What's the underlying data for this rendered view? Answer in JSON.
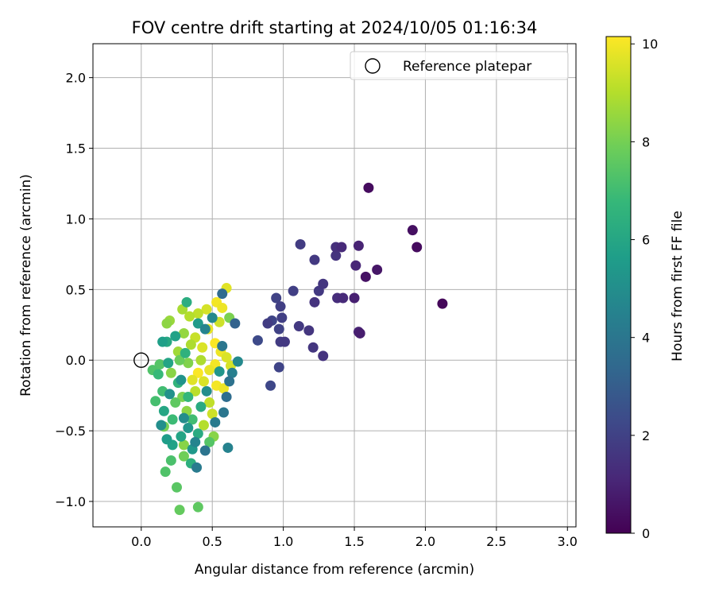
{
  "chart_data": {
    "type": "scatter",
    "title": "FOV centre drift starting at 2024/10/05 01:16:34",
    "xlabel": "Angular distance from reference (arcmin)",
    "ylabel": "Rotation from reference (arcmin)",
    "xlim": [
      -0.34,
      3.06
    ],
    "ylim": [
      -1.18,
      2.24
    ],
    "xticks": [
      "0.0",
      "0.5",
      "1.0",
      "1.5",
      "2.0",
      "2.5",
      "3.0"
    ],
    "xtick_values": [
      0.0,
      0.5,
      1.0,
      1.5,
      2.0,
      2.5,
      3.0
    ],
    "yticks": [
      "−1.0",
      "−0.5",
      "0.0",
      "0.5",
      "1.0",
      "1.5",
      "2.0"
    ],
    "ytick_values": [
      -1.0,
      -0.5,
      0.0,
      0.5,
      1.0,
      1.5,
      2.0
    ],
    "grid": true,
    "legend": {
      "position": "top-right",
      "entries": [
        "Reference platepar"
      ]
    },
    "reference_point": {
      "x": 0.0,
      "y": 0.0,
      "marker": "open-circle"
    },
    "colorbar": {
      "label": "Hours from first FF file",
      "colormap": "viridis",
      "range": [
        0,
        10.15
      ],
      "ticks": [
        "0",
        "2",
        "4",
        "6",
        "8",
        "10"
      ],
      "tick_values": [
        0,
        2,
        4,
        6,
        8,
        10
      ]
    },
    "colors": {
      "viridis": [
        "#440154",
        "#482878",
        "#3e4989",
        "#31688e",
        "#26828e",
        "#1f9e89",
        "#35b779",
        "#6ece58",
        "#b5de2b",
        "#fde725"
      ]
    },
    "series": [
      {
        "points": [
          {
            "x": 1.6,
            "y": 1.22,
            "c": 0.3
          },
          {
            "x": 1.91,
            "y": 0.92,
            "c": 0.4
          },
          {
            "x": 1.94,
            "y": 0.8,
            "c": 0.3
          },
          {
            "x": 2.12,
            "y": 0.4,
            "c": 0.2
          },
          {
            "x": 1.66,
            "y": 0.64,
            "c": 0.6
          },
          {
            "x": 1.58,
            "y": 0.59,
            "c": 0.5
          },
          {
            "x": 1.53,
            "y": 0.81,
            "c": 1.0
          },
          {
            "x": 1.51,
            "y": 0.67,
            "c": 1.1
          },
          {
            "x": 1.5,
            "y": 0.44,
            "c": 0.9
          },
          {
            "x": 1.42,
            "y": 0.44,
            "c": 1.2
          },
          {
            "x": 1.38,
            "y": 0.44,
            "c": 1.3
          },
          {
            "x": 1.54,
            "y": 0.19,
            "c": 0.8
          },
          {
            "x": 1.53,
            "y": 0.2,
            "c": 1.0
          },
          {
            "x": 1.41,
            "y": 0.8,
            "c": 1.2
          },
          {
            "x": 1.37,
            "y": 0.8,
            "c": 1.4
          },
          {
            "x": 1.37,
            "y": 0.74,
            "c": 1.5
          },
          {
            "x": 1.12,
            "y": 0.82,
            "c": 1.8
          },
          {
            "x": 1.22,
            "y": 0.71,
            "c": 1.7
          },
          {
            "x": 1.28,
            "y": 0.54,
            "c": 1.6
          },
          {
            "x": 1.25,
            "y": 0.49,
            "c": 1.7
          },
          {
            "x": 1.22,
            "y": 0.41,
            "c": 1.5
          },
          {
            "x": 1.07,
            "y": 0.49,
            "c": 1.9
          },
          {
            "x": 0.95,
            "y": 0.44,
            "c": 2.0
          },
          {
            "x": 0.98,
            "y": 0.38,
            "c": 1.9
          },
          {
            "x": 0.92,
            "y": 0.28,
            "c": 2.1
          },
          {
            "x": 0.89,
            "y": 0.26,
            "c": 1.8
          },
          {
            "x": 0.99,
            "y": 0.3,
            "c": 1.9
          },
          {
            "x": 1.11,
            "y": 0.24,
            "c": 1.7
          },
          {
            "x": 1.18,
            "y": 0.21,
            "c": 1.6
          },
          {
            "x": 0.97,
            "y": 0.22,
            "c": 2.0
          },
          {
            "x": 0.98,
            "y": 0.13,
            "c": 1.8
          },
          {
            "x": 1.01,
            "y": 0.13,
            "c": 1.7
          },
          {
            "x": 0.82,
            "y": 0.14,
            "c": 2.3
          },
          {
            "x": 1.21,
            "y": 0.09,
            "c": 1.6
          },
          {
            "x": 1.28,
            "y": 0.03,
            "c": 1.5
          },
          {
            "x": 0.97,
            "y": -0.05,
            "c": 2.1
          },
          {
            "x": 0.91,
            "y": -0.18,
            "c": 2.2
          },
          {
            "x": 0.66,
            "y": 0.26,
            "c": 3.2
          },
          {
            "x": 0.57,
            "y": 0.47,
            "c": 3.5
          },
          {
            "x": 0.62,
            "y": -0.15,
            "c": 3.8
          },
          {
            "x": 0.6,
            "y": -0.26,
            "c": 3.6
          },
          {
            "x": 0.58,
            "y": -0.37,
            "c": 4.0
          },
          {
            "x": 0.61,
            "y": -0.62,
            "c": 4.5
          },
          {
            "x": 0.45,
            "y": -0.64,
            "c": 3.9
          },
          {
            "x": 0.39,
            "y": -0.76,
            "c": 4.2
          },
          {
            "x": 0.68,
            "y": -0.01,
            "c": 4.8
          },
          {
            "x": 0.64,
            "y": -0.09,
            "c": 4.4
          },
          {
            "x": 0.57,
            "y": 0.1,
            "c": 4.0
          },
          {
            "x": 0.45,
            "y": 0.22,
            "c": 4.6
          },
          {
            "x": 0.52,
            "y": -0.44,
            "c": 4.2
          },
          {
            "x": 0.38,
            "y": -0.58,
            "c": 4.6
          },
          {
            "x": 0.3,
            "y": -0.41,
            "c": 4.9
          },
          {
            "x": 0.14,
            "y": -0.46,
            "c": 5.0
          },
          {
            "x": 0.2,
            "y": -0.24,
            "c": 5.1
          },
          {
            "x": 0.28,
            "y": -0.14,
            "c": 5.2
          },
          {
            "x": 0.33,
            "y": -0.48,
            "c": 5.3
          },
          {
            "x": 0.36,
            "y": -0.63,
            "c": 5.4
          },
          {
            "x": 0.15,
            "y": 0.13,
            "c": 5.7
          },
          {
            "x": 0.18,
            "y": 0.13,
            "c": 6.1
          },
          {
            "x": 0.32,
            "y": 0.41,
            "c": 6.3
          },
          {
            "x": 0.24,
            "y": 0.17,
            "c": 5.8
          },
          {
            "x": 0.19,
            "y": -0.02,
            "c": 5.9
          },
          {
            "x": 0.16,
            "y": -0.36,
            "c": 6.0
          },
          {
            "x": 0.18,
            "y": -0.56,
            "c": 5.6
          },
          {
            "x": 0.22,
            "y": -0.6,
            "c": 5.8
          },
          {
            "x": 0.28,
            "y": -0.54,
            "c": 5.9
          },
          {
            "x": 0.4,
            "y": -0.52,
            "c": 6.2
          },
          {
            "x": 0.35,
            "y": -0.73,
            "c": 6.4
          },
          {
            "x": 0.42,
            "y": -0.33,
            "c": 6.2
          },
          {
            "x": 0.12,
            "y": -0.1,
            "c": 6.8
          },
          {
            "x": 0.1,
            "y": -0.29,
            "c": 7.1
          },
          {
            "x": 0.08,
            "y": -0.07,
            "c": 7.3
          },
          {
            "x": 0.13,
            "y": -0.03,
            "c": 7.4
          },
          {
            "x": 0.21,
            "y": -0.71,
            "c": 7.2
          },
          {
            "x": 0.25,
            "y": -0.9,
            "c": 7.5
          },
          {
            "x": 0.27,
            "y": -1.06,
            "c": 7.7
          },
          {
            "x": 0.4,
            "y": -1.04,
            "c": 7.6
          },
          {
            "x": 0.17,
            "y": -0.79,
            "c": 7.3
          },
          {
            "x": 0.3,
            "y": -0.68,
            "c": 7.9
          },
          {
            "x": 0.48,
            "y": -0.58,
            "c": 7.4
          },
          {
            "x": 0.51,
            "y": -0.54,
            "c": 8.3
          },
          {
            "x": 0.18,
            "y": 0.26,
            "c": 8.4
          },
          {
            "x": 0.2,
            "y": 0.28,
            "c": 8.6
          },
          {
            "x": 0.29,
            "y": 0.36,
            "c": 8.8
          },
          {
            "x": 0.3,
            "y": 0.19,
            "c": 8.5
          },
          {
            "x": 0.26,
            "y": 0.06,
            "c": 8.7
          },
          {
            "x": 0.35,
            "y": 0.11,
            "c": 8.9
          },
          {
            "x": 0.33,
            "y": -0.02,
            "c": 8.2
          },
          {
            "x": 0.29,
            "y": -0.26,
            "c": 8.1
          },
          {
            "x": 0.32,
            "y": -0.36,
            "c": 8.4
          },
          {
            "x": 0.16,
            "y": -0.47,
            "c": 8.0
          },
          {
            "x": 0.3,
            "y": -0.6,
            "c": 8.3
          },
          {
            "x": 0.34,
            "y": 0.31,
            "c": 9.0
          },
          {
            "x": 0.4,
            "y": 0.33,
            "c": 9.2
          },
          {
            "x": 0.46,
            "y": 0.36,
            "c": 9.5
          },
          {
            "x": 0.38,
            "y": 0.16,
            "c": 9.3
          },
          {
            "x": 0.43,
            "y": 0.09,
            "c": 9.6
          },
          {
            "x": 0.47,
            "y": 0.22,
            "c": 9.8
          },
          {
            "x": 0.53,
            "y": 0.41,
            "c": 10.0
          },
          {
            "x": 0.57,
            "y": 0.37,
            "c": 9.9
          },
          {
            "x": 0.6,
            "y": 0.51,
            "c": 9.7
          },
          {
            "x": 0.55,
            "y": 0.27,
            "c": 9.4
          },
          {
            "x": 0.52,
            "y": 0.12,
            "c": 10.1
          },
          {
            "x": 0.56,
            "y": 0.06,
            "c": 9.9
          },
          {
            "x": 0.6,
            "y": 0.02,
            "c": 9.6
          },
          {
            "x": 0.63,
            "y": -0.04,
            "c": 9.5
          },
          {
            "x": 0.52,
            "y": -0.03,
            "c": 10.0
          },
          {
            "x": 0.48,
            "y": -0.07,
            "c": 9.8
          },
          {
            "x": 0.44,
            "y": -0.15,
            "c": 9.6
          },
          {
            "x": 0.4,
            "y": -0.09,
            "c": 10.1
          },
          {
            "x": 0.36,
            "y": -0.14,
            "c": 9.7
          },
          {
            "x": 0.53,
            "y": -0.18,
            "c": 10.0
          },
          {
            "x": 0.58,
            "y": -0.2,
            "c": 9.9
          },
          {
            "x": 0.48,
            "y": -0.3,
            "c": 9.2
          },
          {
            "x": 0.5,
            "y": -0.38,
            "c": 9.4
          },
          {
            "x": 0.44,
            "y": -0.46,
            "c": 9.0
          },
          {
            "x": 0.38,
            "y": -0.22,
            "c": 9.1
          },
          {
            "x": 0.42,
            "y": 0.0,
            "c": 8.9
          },
          {
            "x": 0.24,
            "y": -0.3,
            "c": 7.6
          },
          {
            "x": 0.22,
            "y": -0.42,
            "c": 6.9
          },
          {
            "x": 0.36,
            "y": -0.42,
            "c": 7.0
          },
          {
            "x": 0.26,
            "y": -0.16,
            "c": 6.6
          },
          {
            "x": 0.31,
            "y": 0.05,
            "c": 6.5
          },
          {
            "x": 0.4,
            "y": 0.26,
            "c": 5.5
          },
          {
            "x": 0.5,
            "y": 0.3,
            "c": 4.8
          },
          {
            "x": 0.55,
            "y": -0.08,
            "c": 5.3
          },
          {
            "x": 0.46,
            "y": -0.22,
            "c": 5.0
          },
          {
            "x": 0.27,
            "y": 0.0,
            "c": 7.8
          },
          {
            "x": 0.21,
            "y": -0.09,
            "c": 8.3
          },
          {
            "x": 0.15,
            "y": -0.22,
            "c": 7.0
          },
          {
            "x": 0.33,
            "y": -0.26,
            "c": 6.7
          },
          {
            "x": 0.62,
            "y": 0.3,
            "c": 8.1
          }
        ]
      }
    ]
  }
}
